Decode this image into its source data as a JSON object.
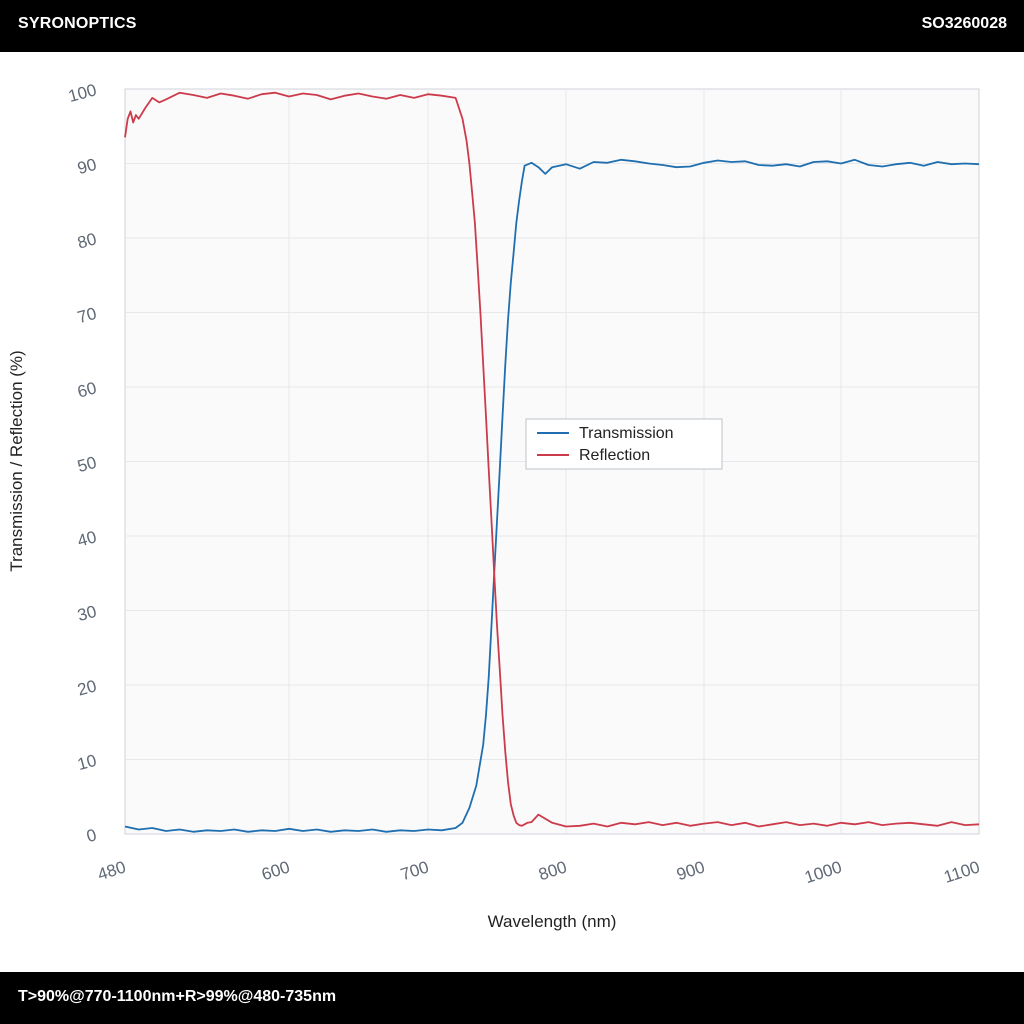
{
  "header": {
    "brand": "SYRONOPTICS",
    "part_number": "SO3260028"
  },
  "footer": {
    "spec": "T>90%@770-1100nm+R>99%@480-735nm"
  },
  "chart_data": {
    "type": "line",
    "xlabel": "Wavelength (nm)",
    "ylabel": "Transmission / Reflection (%)",
    "xlim": [
      480,
      1100
    ],
    "ylim": [
      0,
      100
    ],
    "x_ticks": [
      480,
      600,
      700,
      800,
      900,
      1000,
      1100
    ],
    "y_ticks": [
      0,
      10,
      20,
      30,
      40,
      50,
      60,
      70,
      80,
      90,
      100
    ],
    "grid": true,
    "legend": "center",
    "series": [
      {
        "name": "Transmission",
        "color": "#1f6fb0",
        "x": [
          480,
          490,
          500,
          510,
          520,
          530,
          540,
          550,
          560,
          570,
          580,
          590,
          600,
          610,
          620,
          630,
          640,
          650,
          660,
          670,
          680,
          690,
          700,
          710,
          720,
          725,
          730,
          735,
          740,
          742,
          744,
          746,
          748,
          750,
          752,
          754,
          756,
          758,
          760,
          762,
          764,
          766,
          768,
          770,
          775,
          780,
          785,
          790,
          800,
          810,
          820,
          830,
          840,
          850,
          860,
          870,
          880,
          890,
          900,
          910,
          920,
          930,
          940,
          950,
          960,
          970,
          980,
          990,
          1000,
          1010,
          1020,
          1030,
          1040,
          1050,
          1060,
          1070,
          1080,
          1090,
          1100
        ],
        "y": [
          1.0,
          0.6,
          0.8,
          0.4,
          0.6,
          0.3,
          0.5,
          0.4,
          0.6,
          0.3,
          0.5,
          0.4,
          0.7,
          0.4,
          0.6,
          0.3,
          0.5,
          0.4,
          0.6,
          0.3,
          0.5,
          0.4,
          0.6,
          0.5,
          0.8,
          1.5,
          3.5,
          6.5,
          12,
          16,
          21,
          28,
          35,
          42,
          49,
          56,
          63,
          69,
          74,
          78,
          82,
          85,
          87.5,
          89.7,
          90.1,
          89.5,
          88.6,
          89.5,
          89.9,
          89.3,
          90.2,
          90.1,
          90.5,
          90.3,
          90.0,
          89.8,
          89.5,
          89.6,
          90.1,
          90.4,
          90.2,
          90.3,
          89.8,
          89.7,
          89.9,
          89.6,
          90.2,
          90.3,
          90.0,
          90.5,
          89.8,
          89.6,
          89.9,
          90.1,
          89.7,
          90.2,
          89.9,
          90.0,
          89.9
        ]
      },
      {
        "name": "Reflection",
        "color": "#cc3b4b",
        "x": [
          480,
          482,
          484,
          486,
          488,
          490,
          495,
          500,
          505,
          510,
          520,
          530,
          540,
          550,
          560,
          570,
          580,
          590,
          600,
          610,
          620,
          630,
          640,
          650,
          660,
          670,
          680,
          690,
          700,
          710,
          720,
          725,
          728,
          730,
          732,
          734,
          736,
          738,
          740,
          742,
          744,
          746,
          748,
          750,
          752,
          754,
          756,
          758,
          760,
          762,
          764,
          766,
          768,
          770,
          772,
          775,
          780,
          790,
          800,
          810,
          820,
          830,
          840,
          850,
          860,
          870,
          880,
          890,
          900,
          910,
          920,
          930,
          940,
          950,
          960,
          970,
          980,
          990,
          1000,
          1010,
          1020,
          1030,
          1040,
          1050,
          1060,
          1070,
          1080,
          1090,
          1100
        ],
        "y": [
          93.5,
          96,
          97,
          95.5,
          96.5,
          96,
          97.5,
          98.8,
          98.2,
          98.6,
          99.5,
          99.2,
          98.8,
          99.4,
          99.1,
          98.7,
          99.3,
          99.5,
          99.0,
          99.4,
          99.2,
          98.6,
          99.1,
          99.4,
          99.0,
          98.7,
          99.2,
          98.8,
          99.3,
          99.1,
          98.8,
          96,
          93,
          90,
          86,
          82,
          76,
          70,
          63,
          56,
          49,
          42,
          35,
          28,
          22,
          16,
          11,
          7,
          4,
          2.5,
          1.5,
          1.2,
          1.1,
          1.3,
          1.5,
          1.6,
          2.6,
          1.5,
          1.0,
          1.1,
          1.4,
          1.0,
          1.5,
          1.3,
          1.6,
          1.2,
          1.5,
          1.1,
          1.4,
          1.6,
          1.2,
          1.5,
          1.0,
          1.3,
          1.6,
          1.2,
          1.4,
          1.1,
          1.5,
          1.3,
          1.6,
          1.2,
          1.4,
          1.5,
          1.3,
          1.1,
          1.6,
          1.2,
          1.3
        ]
      }
    ]
  }
}
